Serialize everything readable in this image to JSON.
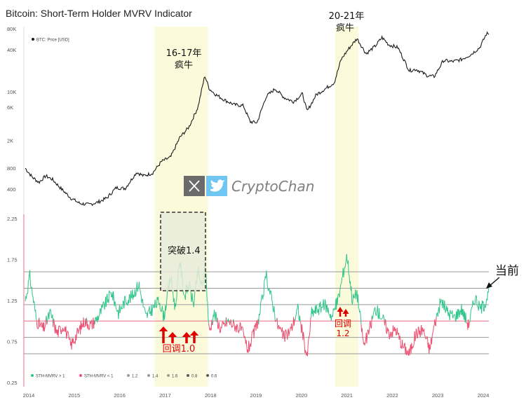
{
  "title": "Bitcoin: Short-Term Holder MVRV Indicator",
  "colors": {
    "price": "#1a1a1a",
    "above": "#2fc48a",
    "below": "#ec4f6f",
    "bull_zone": "#fbfbdc",
    "ref_red": "#ec6c84",
    "ref_green": "#9fe0c4",
    "ref_grey": "#9a9a9a",
    "arrow_red": "#e00000"
  },
  "chart_data": {
    "type": "line",
    "x_ticks": [
      "2014",
      "2015",
      "2016",
      "2017",
      "2018",
      "2019",
      "2020",
      "2021",
      "2022",
      "2023",
      "2024"
    ],
    "price_panel": {
      "scale": "log",
      "y_ticks": [
        "80K",
        "40K",
        "10K",
        "6K",
        "2K",
        "800",
        "400"
      ],
      "y_tick_values": [
        80000,
        40000,
        10000,
        6000,
        2000,
        800,
        400
      ],
      "ylim": [
        200,
        80000
      ],
      "legend": "BTC: Price [USD]",
      "series": [
        {
          "name": "BTC: Price [USD]",
          "x": [
            2014.0,
            2014.15,
            2014.3,
            2014.45,
            2014.6,
            2014.8,
            2015.0,
            2015.2,
            2015.4,
            2015.6,
            2015.8,
            2016.0,
            2016.2,
            2016.45,
            2016.6,
            2016.8,
            2017.0,
            2017.2,
            2017.4,
            2017.6,
            2017.8,
            2017.95,
            2018.05,
            2018.2,
            2018.4,
            2018.6,
            2018.8,
            2018.95,
            2019.1,
            2019.3,
            2019.5,
            2019.7,
            2019.9,
            2020.1,
            2020.2,
            2020.4,
            2020.6,
            2020.8,
            2020.95,
            2021.1,
            2021.3,
            2021.5,
            2021.7,
            2021.85,
            2022.0,
            2022.2,
            2022.45,
            2022.6,
            2022.85,
            2023.0,
            2023.2,
            2023.4,
            2023.6,
            2023.8,
            2024.0,
            2024.15
          ],
          "values": [
            800,
            600,
            500,
            620,
            550,
            400,
            300,
            250,
            240,
            260,
            300,
            420,
            410,
            700,
            620,
            680,
            1000,
            1150,
            2200,
            3100,
            6000,
            17000,
            11000,
            9000,
            7500,
            6500,
            6300,
            3700,
            3600,
            8500,
            11000,
            8200,
            7200,
            9300,
            5200,
            9000,
            11000,
            13500,
            29000,
            40000,
            58000,
            35000,
            45000,
            60000,
            47000,
            43000,
            20000,
            21000,
            17000,
            16500,
            28000,
            27000,
            29000,
            34000,
            43000,
            68000
          ]
        }
      ]
    },
    "mvrv_panel": {
      "y_ticks": [
        "2.25",
        "1.75",
        "1.25",
        "0.75",
        "0.25"
      ],
      "y_tick_values": [
        2.25,
        1.75,
        1.25,
        0.75,
        0.25
      ],
      "ylim": [
        0.25,
        2.25
      ],
      "reference_lines": [
        1.6,
        1.4,
        1.2,
        1.0,
        0.8,
        0.6
      ],
      "series": [
        {
          "name": "STH-MVRV",
          "x": [
            2014.0,
            2014.1,
            2014.25,
            2014.4,
            2014.55,
            2014.7,
            2014.85,
            2015.0,
            2015.15,
            2015.3,
            2015.45,
            2015.6,
            2015.75,
            2015.9,
            2016.05,
            2016.2,
            2016.35,
            2016.5,
            2016.65,
            2016.8,
            2016.95,
            2017.05,
            2017.2,
            2017.3,
            2017.4,
            2017.5,
            2017.6,
            2017.7,
            2017.8,
            2017.9,
            2017.96,
            2018.05,
            2018.15,
            2018.3,
            2018.45,
            2018.6,
            2018.75,
            2018.9,
            2019.0,
            2019.15,
            2019.3,
            2019.45,
            2019.55,
            2019.7,
            2019.85,
            2020.0,
            2020.1,
            2020.2,
            2020.3,
            2020.45,
            2020.6,
            2020.75,
            2020.9,
            2021.0,
            2021.08,
            2021.2,
            2021.3,
            2021.45,
            2021.55,
            2021.7,
            2021.85,
            2022.0,
            2022.15,
            2022.3,
            2022.45,
            2022.6,
            2022.75,
            2022.9,
            2023.0,
            2023.15,
            2023.3,
            2023.45,
            2023.6,
            2023.75,
            2023.9,
            2024.0,
            2024.1,
            2024.2
          ],
          "values": [
            1.25,
            1.55,
            1.0,
            0.9,
            1.1,
            0.85,
            0.95,
            0.7,
            0.85,
            1.0,
            0.95,
            1.05,
            1.2,
            1.35,
            1.1,
            1.25,
            1.3,
            1.45,
            1.05,
            1.15,
            1.25,
            1.05,
            1.55,
            1.15,
            1.75,
            1.3,
            1.45,
            1.2,
            1.6,
            1.4,
            1.7,
            0.85,
            1.1,
            0.9,
            1.0,
            0.95,
            0.9,
            0.65,
            0.8,
            1.05,
            1.55,
            1.2,
            0.95,
            0.8,
            0.9,
            1.15,
            0.85,
            0.55,
            1.1,
            1.15,
            1.2,
            1.05,
            1.3,
            1.6,
            1.8,
            1.25,
            1.35,
            0.7,
            0.85,
            1.15,
            1.05,
            0.85,
            0.9,
            0.7,
            0.6,
            0.85,
            0.9,
            0.65,
            0.95,
            1.25,
            1.1,
            1.05,
            1.15,
            0.95,
            1.3,
            1.15,
            1.2,
            1.35
          ]
        }
      ]
    },
    "legend": [
      {
        "label": "STH-MVRV > 1",
        "color": "#2fc48a"
      },
      {
        "label": "STH-MVRV < 1",
        "color": "#ec4f6f"
      },
      {
        "label": "1.2",
        "color": "#9a9a9a"
      },
      {
        "label": "1.4",
        "color": "#9a9a9a"
      },
      {
        "label": "1.6",
        "color": "#9a9a9a"
      },
      {
        "label": "0.8",
        "color": "#5a5a5a"
      },
      {
        "label": "0.6",
        "color": "#5a5a5a"
      }
    ],
    "bull_zones": [
      [
        2016.85,
        2018.02
      ],
      [
        2020.82,
        2021.33
      ]
    ]
  },
  "annotations": {
    "bull1_line1": "16-17年",
    "bull1_line2": "疯牛",
    "bull2_line1": "20-21年",
    "bull2_line2": "疯牛",
    "breakout": "突破1.4",
    "pullback1": "回调1.0",
    "pullback2_line1": "回调",
    "pullback2_line2": "1.2",
    "current": "当前"
  },
  "watermark": {
    "text": "CryptoChan",
    "icons": [
      "x-logo-icon",
      "twitter-bird-icon"
    ]
  }
}
